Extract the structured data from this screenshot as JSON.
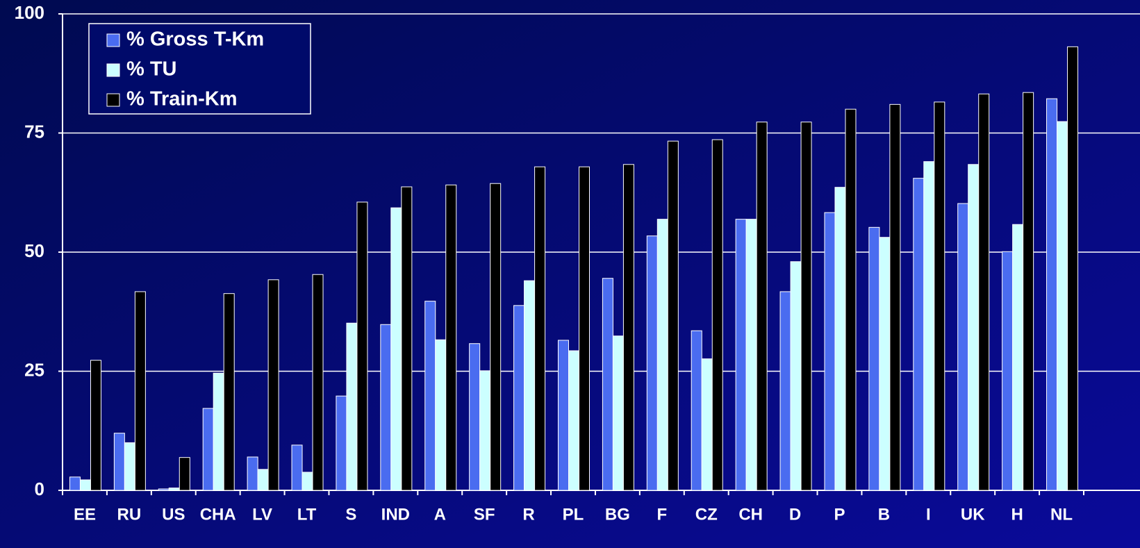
{
  "chart_data": {
    "type": "bar",
    "categories": [
      "EE",
      "RU",
      "US",
      "CHA",
      "LV",
      "LT",
      "S",
      "IND",
      "A",
      "SF",
      "R",
      "PL",
      "BG",
      "F",
      "CZ",
      "CH",
      "D",
      "P",
      "B",
      "I",
      "UK",
      "H",
      "NL"
    ],
    "series": [
      {
        "name": " % Gross T-Km",
        "color": "#4a6cf0",
        "values": [
          2.8,
          12,
          0.3,
          17.2,
          7,
          9.5,
          19.8,
          34.8,
          39.7,
          30.8,
          38.8,
          31.5,
          44.5,
          53.4,
          33.5,
          56.9,
          41.7,
          58.3,
          55.2,
          65.5,
          60.2,
          50.1,
          82.2
        ]
      },
      {
        "name": "% TU",
        "color": "#ccffff",
        "values": [
          2.2,
          10,
          0.5,
          24.6,
          4.4,
          3.8,
          35.1,
          59.3,
          31.6,
          25.1,
          44,
          29.3,
          32.4,
          56.9,
          27.6,
          56.9,
          48,
          63.6,
          53.1,
          69,
          68.4,
          55.8,
          77.4
        ]
      },
      {
        "name": "% Train-Km",
        "color": "#000000",
        "values": [
          27.3,
          41.7,
          6.9,
          41.3,
          44.2,
          45.3,
          60.5,
          63.7,
          64.1,
          64.4,
          67.9,
          67.9,
          68.4,
          73.3,
          73.6,
          77.3,
          77.3,
          80,
          81,
          81.5,
          83.2,
          83.5,
          93.1
        ]
      }
    ],
    "ylim": [
      0,
      100
    ],
    "yticks": [
      0,
      25,
      50,
      75,
      100
    ],
    "grid": true
  }
}
